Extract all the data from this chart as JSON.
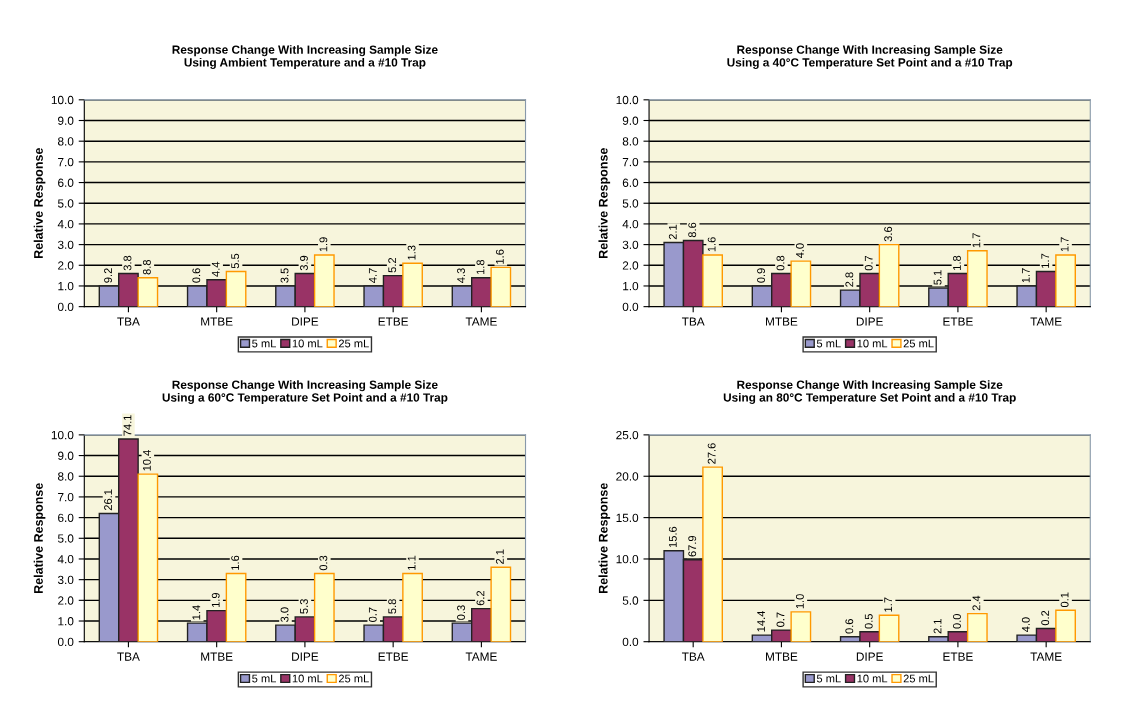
{
  "chart_data": [
    {
      "type": "bar",
      "title": "Response Change With Increasing Sample Size",
      "subtitle": "Using Ambient Temperature and a #10 Trap",
      "ylabel": "Relative Response",
      "categories": [
        "TBA",
        "MTBE",
        "DIPE",
        "ETBE",
        "TAME"
      ],
      "series": [
        {
          "name": "5 mL",
          "color": "#9999cc",
          "values": [
            1.0,
            1.0,
            1.0,
            1.0,
            1.0
          ]
        },
        {
          "name": "10 mL",
          "color": "#993366",
          "values": [
            1.6,
            1.3,
            1.6,
            1.5,
            1.4
          ]
        },
        {
          "name": "25 mL",
          "color": "#ffffcc",
          "values": [
            1.4,
            1.7,
            2.5,
            2.1,
            1.9
          ]
        }
      ],
      "annotations": [
        "9.2",
        "3.8",
        "8.8",
        "0.6",
        "4.4",
        "5.5",
        "3.5",
        "3.9",
        "1.9",
        "4.7",
        "5.2",
        "1.3",
        "4.3",
        "1.8",
        "1.6"
      ],
      "ylim": [
        0,
        10
      ],
      "yticks": [
        {
          "value": 0,
          "label": "0.0"
        },
        {
          "value": 1,
          "label": "1.0"
        },
        {
          "value": 2,
          "label": "2.0"
        },
        {
          "value": 3,
          "label": "3.0"
        },
        {
          "value": 4,
          "label": "4.0"
        },
        {
          "value": 5,
          "label": "5.0"
        },
        {
          "value": 6,
          "label": "6.0"
        },
        {
          "value": 7,
          "label": "7.0"
        },
        {
          "value": 8,
          "label": "8.0"
        },
        {
          "value": 9,
          "label": "9.0"
        },
        {
          "value": 10,
          "label": "10.0"
        }
      ],
      "grid": "y",
      "legend": "bottom"
    },
    {
      "type": "bar",
      "title": "Response Change With Increasing Sample Size",
      "subtitle": "Using a 40°C Temperature Set Point and a #10 Trap",
      "ylabel": "Relative Response",
      "categories": [
        "TBA",
        "MTBE",
        "DIPE",
        "ETBE",
        "TAME"
      ],
      "series": [
        {
          "name": "5 mL",
          "color": "#9999cc",
          "values": [
            3.1,
            1.0,
            0.8,
            0.9,
            1.0
          ]
        },
        {
          "name": "10 mL",
          "color": "#993366",
          "values": [
            3.2,
            1.6,
            1.6,
            1.6,
            1.7
          ]
        },
        {
          "name": "25 mL",
          "color": "#ffffcc",
          "values": [
            2.5,
            2.2,
            3.0,
            2.7,
            2.5
          ]
        }
      ],
      "annotations": [
        "2.1",
        "8.6",
        "1.6",
        "0.9",
        "0.8",
        "4.0",
        "2.8",
        "0.7",
        "3.6",
        "5.1",
        "1.8",
        "1.7",
        "1.7",
        "1.7",
        "1.7"
      ],
      "ylim": [
        0,
        10
      ],
      "yticks": [
        {
          "value": 0,
          "label": "0.0"
        },
        {
          "value": 1,
          "label": "1.0"
        },
        {
          "value": 2,
          "label": "2.0"
        },
        {
          "value": 3,
          "label": "3.0"
        },
        {
          "value": 4,
          "label": "4.0"
        },
        {
          "value": 5,
          "label": "5.0"
        },
        {
          "value": 6,
          "label": "6.0"
        },
        {
          "value": 7,
          "label": "7.0"
        },
        {
          "value": 8,
          "label": "8.0"
        },
        {
          "value": 9,
          "label": "9.0"
        },
        {
          "value": 10,
          "label": "10.0"
        }
      ],
      "grid": "y",
      "legend": "bottom"
    },
    {
      "type": "bar",
      "title": "Response Change With Increasing Sample Size",
      "subtitle": "Using a 60°C Temperature Set Point and a #10 Trap",
      "ylabel": "Relative Response",
      "categories": [
        "TBA",
        "MTBE",
        "DIPE",
        "ETBE",
        "TAME"
      ],
      "series": [
        {
          "name": "5 mL",
          "color": "#9999cc",
          "values": [
            6.2,
            0.9,
            0.8,
            0.8,
            0.9
          ]
        },
        {
          "name": "10 mL",
          "color": "#993366",
          "values": [
            9.8,
            1.5,
            1.2,
            1.2,
            1.6
          ]
        },
        {
          "name": "25 mL",
          "color": "#ffffcc",
          "values": [
            8.1,
            3.3,
            3.3,
            3.3,
            3.6
          ]
        }
      ],
      "annotations": [
        "26.1",
        "74.1",
        "10.4",
        "1.4",
        "1.9",
        "1.6",
        "3.0",
        "5.3",
        "0.3",
        "0.7",
        "5.8",
        "1.1",
        "0.3",
        "6.2",
        "2.1"
      ],
      "ylim": [
        0,
        10
      ],
      "yticks": [
        {
          "value": 0,
          "label": "0.0"
        },
        {
          "value": 1,
          "label": "1.0"
        },
        {
          "value": 2,
          "label": "2.0"
        },
        {
          "value": 3,
          "label": "3.0"
        },
        {
          "value": 4,
          "label": "4.0"
        },
        {
          "value": 5,
          "label": "5.0"
        },
        {
          "value": 6,
          "label": "6.0"
        },
        {
          "value": 7,
          "label": "7.0"
        },
        {
          "value": 8,
          "label": "8.0"
        },
        {
          "value": 9,
          "label": "9.0"
        },
        {
          "value": 10,
          "label": "10.0"
        }
      ],
      "grid": "y",
      "legend": "bottom"
    },
    {
      "type": "bar",
      "title": "Response Change With Increasing Sample Size",
      "subtitle": "Using an 80°C Temperature Set Point and a #10 Trap",
      "ylabel": "Relative Response",
      "categories": [
        "TBA",
        "MTBE",
        "DIPE",
        "ETBE",
        "TAME"
      ],
      "series": [
        {
          "name": "5 mL",
          "color": "#9999cc",
          "values": [
            11.0,
            0.8,
            0.6,
            0.6,
            0.8
          ]
        },
        {
          "name": "10 mL",
          "color": "#993366",
          "values": [
            9.9,
            1.4,
            1.2,
            1.2,
            1.6
          ]
        },
        {
          "name": "25 mL",
          "color": "#ffffcc",
          "values": [
            21.1,
            3.6,
            3.2,
            3.4,
            3.8
          ]
        }
      ],
      "annotations": [
        "15.6",
        "67.9",
        "27.6",
        "14.4",
        "0.7",
        "1.0",
        "0.6",
        "0.5",
        "1.7",
        "2.1",
        "0.0",
        "2.4",
        "4.0",
        "0.2",
        "0.1"
      ],
      "ylim": [
        0,
        25
      ],
      "yticks": [
        {
          "value": 0,
          "label": "0.0"
        },
        {
          "value": 5,
          "label": "5.0"
        },
        {
          "value": 10,
          "label": "10.0"
        },
        {
          "value": 15,
          "label": "15.0"
        },
        {
          "value": 20,
          "label": "20.0"
        },
        {
          "value": 25,
          "label": "25.0"
        }
      ],
      "grid": "y",
      "legend": "bottom"
    }
  ]
}
